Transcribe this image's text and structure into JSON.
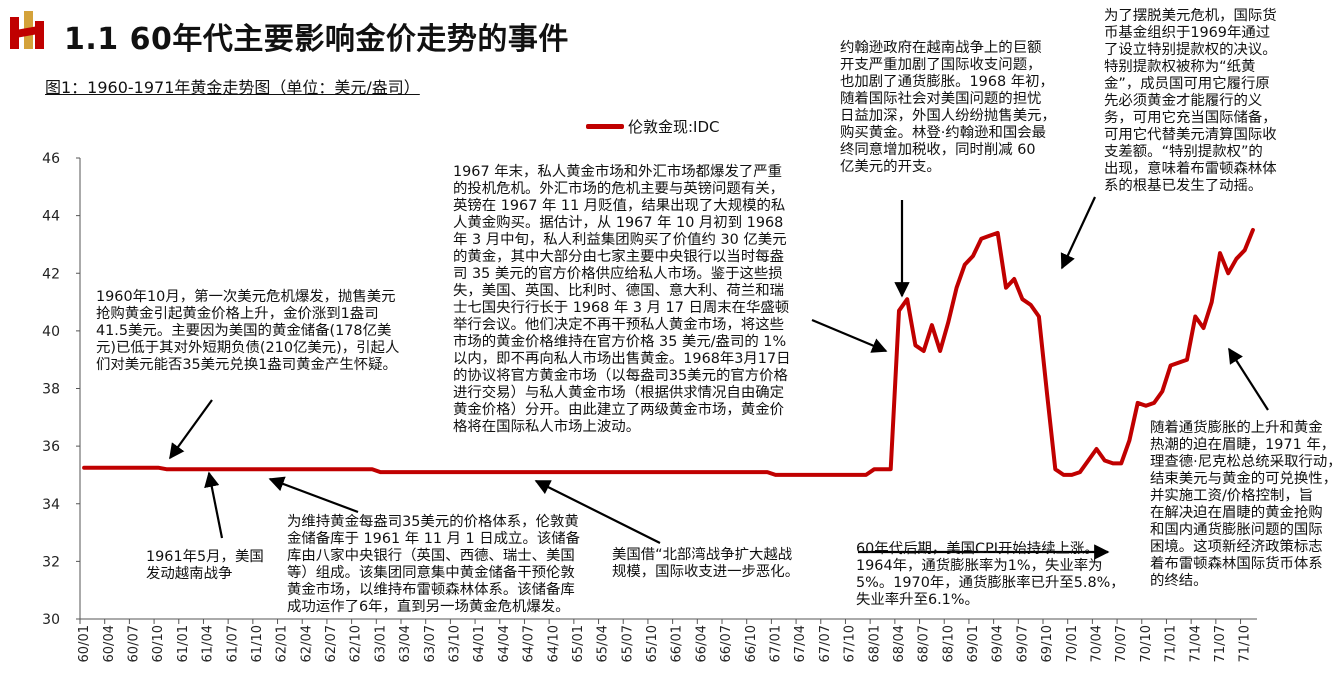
{
  "header": {
    "title": "1.1 60年代主要影响金价走势的事件",
    "subtitle": "图1：1960-1971年黄金走势图（单位：美元/盎司）"
  },
  "chart_data": {
    "type": "line",
    "legend_position": "top-center",
    "series": [
      {
        "name": "伦敦金现:IDC",
        "color": "#c00000",
        "values": [
          35.25,
          35.25,
          35.25,
          35.25,
          35.25,
          35.25,
          35.25,
          35.25,
          35.25,
          35.25,
          35.2,
          35.2,
          35.2,
          35.2,
          35.2,
          35.2,
          35.2,
          35.2,
          35.2,
          35.2,
          35.2,
          35.2,
          35.2,
          35.2,
          35.2,
          35.2,
          35.2,
          35.2,
          35.2,
          35.2,
          35.2,
          35.2,
          35.2,
          35.2,
          35.2,
          35.2,
          35.1,
          35.1,
          35.1,
          35.1,
          35.1,
          35.1,
          35.1,
          35.1,
          35.1,
          35.1,
          35.1,
          35.1,
          35.1,
          35.1,
          35.1,
          35.1,
          35.1,
          35.1,
          35.1,
          35.1,
          35.1,
          35.1,
          35.1,
          35.1,
          35.1,
          35.1,
          35.1,
          35.1,
          35.1,
          35.1,
          35.1,
          35.1,
          35.1,
          35.1,
          35.1,
          35.1,
          35.1,
          35.1,
          35.1,
          35.1,
          35.1,
          35.1,
          35.1,
          35.1,
          35.1,
          35.1,
          35.1,
          35.1,
          35.0,
          35.0,
          35.0,
          35.0,
          35.0,
          35.0,
          35.0,
          35.0,
          35.0,
          35.0,
          35.0,
          35.0,
          35.2,
          35.2,
          35.2,
          40.7,
          41.1,
          39.5,
          39.3,
          40.2,
          39.3,
          40.3,
          41.5,
          42.3,
          42.6,
          43.2,
          43.3,
          43.4,
          41.5,
          41.8,
          41.1,
          40.9,
          40.5,
          37.8,
          35.2,
          35.0,
          35.0,
          35.1,
          35.5,
          35.9,
          35.5,
          35.4,
          35.4,
          36.2,
          37.5,
          37.4,
          37.5,
          37.9,
          38.8,
          38.9,
          39.0,
          40.5,
          40.1,
          41.0,
          42.7,
          42.0,
          42.5,
          42.8,
          43.5
        ]
      }
    ],
    "x_tick_labels": [
      "60/01",
      "60/04",
      "60/07",
      "60/10",
      "61/01",
      "61/04",
      "61/07",
      "61/10",
      "62/01",
      "62/04",
      "62/07",
      "62/10",
      "63/01",
      "63/04",
      "63/07",
      "63/10",
      "64/01",
      "64/04",
      "64/07",
      "64/10",
      "65/01",
      "65/04",
      "65/07",
      "65/10",
      "66/01",
      "66/04",
      "66/07",
      "66/10",
      "67/01",
      "67/04",
      "67/07",
      "67/10",
      "68/01",
      "68/04",
      "68/07",
      "68/10",
      "69/01",
      "69/04",
      "69/07",
      "69/10",
      "70/01",
      "70/04",
      "70/07",
      "70/10",
      "71/01",
      "71/04",
      "71/07",
      "71/10"
    ],
    "y_ticks": [
      "30",
      "32",
      "34",
      "36",
      "38",
      "40",
      "42",
      "44",
      "46"
    ],
    "ylim": [
      30,
      46
    ],
    "grid": false
  },
  "annotations": {
    "a1960": [
      "1960年10月，第一次美元危机爆发，抛售美元",
      "抢购黄金引起黄金价格上升，金价涨到1盎司",
      "41.5美元。主要因为美国的黄金储备(178亿美",
      "元)已低于其对外短期负债(210亿美元)，引起人",
      "们对美元能否35美元兑换1盎司黄金产生怀疑。"
    ],
    "a1961": [
      "1961年5月，美国",
      "发动越南战争"
    ],
    "a_pool": [
      "为维持黄金每盎司35美元的价格体系，伦敦黄",
      "金储备库于 1961 年 11 月 1 日成立。该储备",
      "库由八家中央银行（英国、西德、瑞士、美国",
      "等）组成。该集团同意集中黄金储备干预伦敦",
      "黄金市场，以维持布雷顿森林体系。该储备库",
      "成功运作了6年，直到另一场黄金危机爆发。"
    ],
    "a1967": [
      "1967 年末，私人黄金市场和外汇市场都爆发了严重",
      "的投机危机。外汇市场的危机主要与英镑问题有关，",
      "英镑在 1967 年 11 月贬值，结果出现了大规模的私",
      "人黄金购买。据估计，从 1967 年 10 月初到 1968",
      "年 3 月中旬，私人利益集团购买了价值约 30 亿美元",
      "的黄金，其中大部分由七家主要中央银行以当时每盎",
      "司 35 美元的官方价格供应给私人市场。鉴于这些损",
      "失，美国、英国、比利时、德国、意大利、荷兰和瑞",
      "士七国央行行长于 1968 年 3 月 17 日周末在华盛顿",
      "举行会议。他们决定不再干预私人黄金市场，将这些",
      "市场的黄金价格维持在官方价格 35 美元/盎司的 1%",
      "以内，即不再向私人市场出售黄金。1968年3月17日",
      "的协议将官方黄金市场（以每盎司35美元的官方价格",
      "进行交易）与私人黄金市场（根据供求情况自由确定",
      "黄金价格）分开。由此建立了两级黄金市场，黄金价",
      "格将在国际私人市场上波动。"
    ],
    "a_tonkin": [
      "美国借“北部湾战争扩大越战",
      "规模，国际收支进一步恶化。"
    ],
    "a_johnson": [
      "约翰逊政府在越南战争上的巨额",
      "开支严重加剧了国际收支问题，",
      "也加剧了通货膨胀。1968 年初，",
      "随着国际社会对美国问题的担忧",
      "日益加深，外国人纷纷抛售美元，",
      "购买黄金。林登·约翰逊和国会最",
      "终同意增加税收，同时削减 60",
      "亿美元的开支。"
    ],
    "a_sdr": [
      "为了摆脱美元危机，国际货",
      "币基金组织于1969年通过",
      "了设立特别提款权的决议。",
      "特别提款权被称为“纸黄",
      "金”，成员国可用它履行原",
      "先必须黄金才能履行的义",
      "务，可用它充当国际储备，",
      "可用它代替美元清算国际收",
      "支差额。“特别提款权”的",
      "出现，意味着布雷顿森林体",
      "系的根基已发生了动摇。"
    ],
    "a_cpi": [
      "60年代后期，美国CPI开始持续上涨。",
      "1964年，通货膨胀率为1%，失业率为",
      "5%。1970年，通货膨胀率已升至5.8%，",
      "失业率升至6.1%。"
    ],
    "a1971": [
      "随着通货膨胀的上升和黄金",
      "热潮的迫在眉睫，1971 年，",
      "理查德·尼克松总统采取行动，",
      "结束美元与黄金的可兑换性，",
      "并实施工资/价格控制，旨",
      "在解决迫在眉睫的黄金抢购",
      "和国内通货膨胀问题的国际",
      "困境。这项新经济政策标志",
      "着布雷顿森林国际货币体系",
      "的终结。"
    ]
  }
}
